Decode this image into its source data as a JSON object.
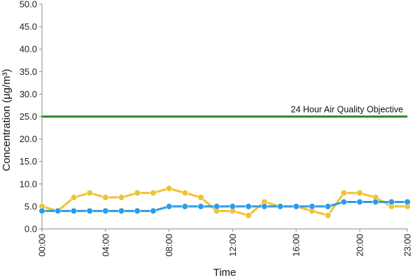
{
  "chart_data": {
    "type": "line",
    "xlabel": "Time",
    "ylabel": "Concentration (µg/m³)",
    "ylim": [
      0,
      50
    ],
    "y_ticks": [
      "0.0",
      "5.0",
      "10.0",
      "15.0",
      "20.0",
      "25.0",
      "30.0",
      "35.0",
      "40.0",
      "45.0",
      "50.0"
    ],
    "x_ticks": [
      {
        "hour": 0,
        "label": "00:00"
      },
      {
        "hour": 4,
        "label": "04:00"
      },
      {
        "hour": 8,
        "label": "08:00"
      },
      {
        "hour": 12,
        "label": "12:00"
      },
      {
        "hour": 16,
        "label": "16:00"
      },
      {
        "hour": 20,
        "label": "20:00"
      },
      {
        "hour": 23,
        "label": "23:00"
      }
    ],
    "x": [
      0,
      1,
      2,
      3,
      4,
      5,
      6,
      7,
      8,
      9,
      10,
      11,
      12,
      13,
      14,
      15,
      16,
      17,
      18,
      19,
      20,
      21,
      22,
      23
    ],
    "series": [
      {
        "color": "#f0c330",
        "values": [
          5,
          4,
          7,
          8,
          7,
          7,
          8,
          8,
          9,
          8,
          7,
          4,
          4,
          3,
          6,
          5,
          5,
          4,
          3,
          8,
          8,
          7,
          5,
          5
        ]
      },
      {
        "color": "#2e9be6",
        "values": [
          4,
          4,
          4,
          4,
          4,
          4,
          4,
          4,
          5,
          5,
          5,
          5,
          5,
          5,
          5,
          5,
          5,
          5,
          5,
          6,
          6,
          6,
          6,
          6
        ]
      }
    ],
    "objective": {
      "label": "24 Hour Air Quality Objective",
      "value": 25,
      "color": "#2e8b2e"
    },
    "grid": false
  }
}
